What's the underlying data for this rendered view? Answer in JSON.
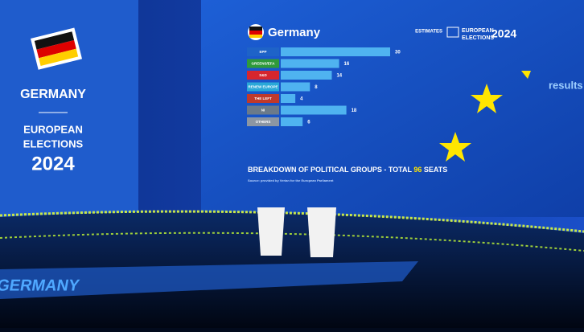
{
  "chart_data": {
    "type": "bar",
    "heading": "Germany",
    "categories": [
      "EPP",
      "GREENS/EFA",
      "S&D",
      "RENEW EUROPE",
      "THE LEFT",
      "NI",
      "OTHERS"
    ],
    "values": [
      30,
      16,
      14,
      8,
      4,
      18,
      6
    ],
    "label_colors": [
      "#1e63c8",
      "#2f9a3a",
      "#d6262e",
      "#2aa8d8",
      "#c0392b",
      "#6b7a8a",
      "#8c96a3"
    ],
    "color": "#4fb3f0",
    "title": "BREAKDOWN OF POLITICAL GROUPS - TOTAL",
    "total_seats": 96,
    "title_suffix": "SEATS",
    "source": "Source: provided by Verian for the European Parliament"
  },
  "logo": {
    "line1": "ESTIMATES",
    "line2": "EUROPEAN",
    "line3": "ELECTIONS",
    "year": "2024"
  },
  "left_panel": {
    "country": "GERMANY",
    "line1": "EUROPEAN",
    "line2": "ELECTIONS",
    "year": "2024"
  },
  "side_text": "results",
  "floor_text": "GERMANY"
}
